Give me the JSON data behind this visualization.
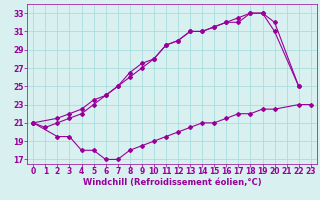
{
  "line1_x": [
    0,
    1,
    2,
    3,
    4,
    5,
    6,
    7,
    8,
    9,
    10,
    11,
    12,
    13,
    14,
    15,
    16,
    17,
    18,
    19,
    20,
    22
  ],
  "line1_y": [
    21,
    20.5,
    21,
    21.5,
    22,
    23,
    24,
    25,
    26.5,
    27.5,
    28,
    29.5,
    30,
    31,
    31,
    31.5,
    32,
    32.5,
    33,
    33,
    32,
    25
  ],
  "line2_x": [
    0,
    2,
    3,
    4,
    5,
    6,
    7,
    8,
    9,
    10,
    11,
    12,
    13,
    14,
    15,
    16,
    17,
    18,
    19,
    20,
    22
  ],
  "line2_y": [
    21,
    21.5,
    22,
    22.5,
    23.5,
    24,
    25,
    26,
    27,
    28,
    29.5,
    30,
    31,
    31,
    31.5,
    32,
    32,
    33,
    33,
    31,
    25
  ],
  "line3_x": [
    0,
    2,
    3,
    4,
    5,
    6,
    7,
    8,
    9,
    10,
    11,
    12,
    13,
    14,
    15,
    16,
    17,
    18,
    19,
    20,
    22,
    23
  ],
  "line3_y": [
    21,
    19.5,
    19.5,
    18,
    18,
    17,
    17,
    18,
    18.5,
    19,
    19.5,
    20,
    20.5,
    21,
    21,
    21.5,
    22,
    22,
    22.5,
    22.5,
    23,
    23
  ],
  "line_color": "#990099",
  "bg_color": "#d8f0f0",
  "grid_color": "#aadddd",
  "xlabel": "Windchill (Refroidissement éolien,°C)",
  "xlim": [
    -0.5,
    23.5
  ],
  "ylim": [
    16.5,
    34
  ],
  "xticks": [
    0,
    1,
    2,
    3,
    4,
    5,
    6,
    7,
    8,
    9,
    10,
    11,
    12,
    13,
    14,
    15,
    16,
    17,
    18,
    19,
    20,
    21,
    22,
    23
  ],
  "yticks": [
    17,
    19,
    21,
    23,
    25,
    27,
    29,
    31,
    33
  ],
  "marker": "D",
  "markersize": 2,
  "linewidth": 0.8,
  "xlabel_fontsize": 6,
  "tick_fontsize": 5.5
}
